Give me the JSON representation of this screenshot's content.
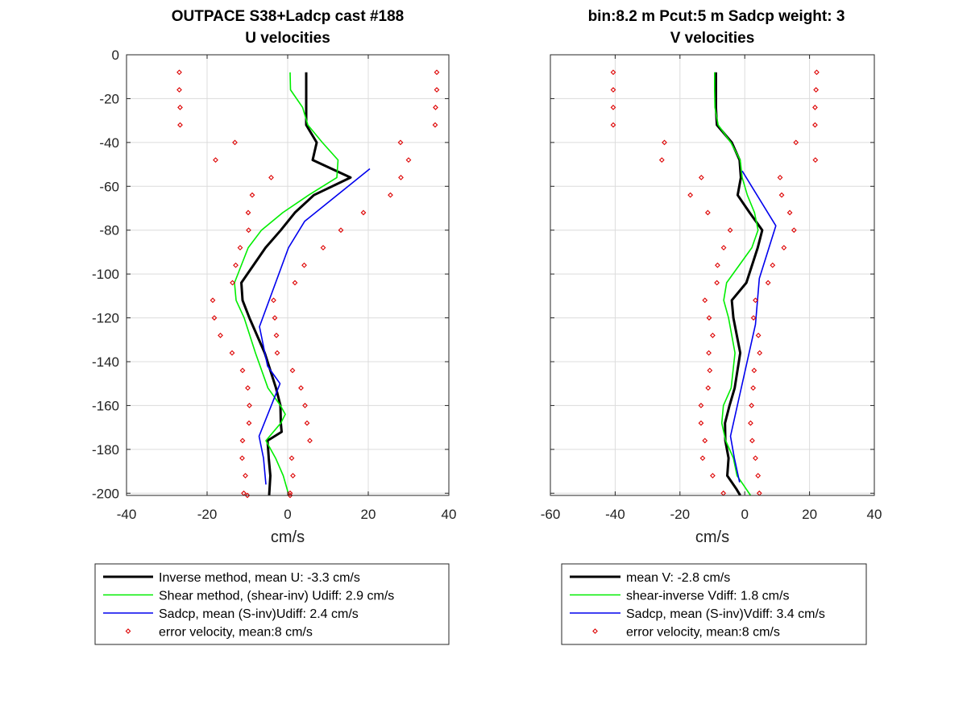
{
  "chart_data": [
    {
      "type": "line",
      "title": "OUTPACE S38+Ladcp cast #188",
      "subtitle": "U velocities",
      "xlabel": "cm/s",
      "ylabel": "",
      "xlim": [
        -40,
        40
      ],
      "ylim": [
        -201,
        0
      ],
      "xticks": [
        -40,
        -20,
        0,
        20,
        40
      ],
      "yticks": [
        0,
        -20,
        -40,
        -60,
        -80,
        -100,
        -120,
        -140,
        -160,
        -180,
        -200
      ],
      "grid": true,
      "legend_position": "below",
      "series": [
        {
          "name": "Inverse method, mean U:  -3.3 cm/s",
          "color": "#000000",
          "style": "line-thick",
          "x": [
            4.6,
            4.6,
            4.6,
            4.6,
            7.2,
            6.2,
            15.6,
            6.5,
            1.8,
            -1.7,
            -5.5,
            -11.5,
            -11.2,
            -9.5,
            -5.7,
            -2.9,
            -1.8,
            -1.7,
            -1.5,
            -5.0,
            -4.7,
            -4.3,
            -4.6
          ],
          "y": [
            -8,
            -16,
            -24,
            -32,
            -40,
            -48,
            -56,
            -64,
            -72,
            -80,
            -88,
            -104,
            -112,
            -120,
            -136,
            -152,
            -160,
            -168,
            -172,
            -176,
            -184,
            -192,
            -201
          ]
        },
        {
          "name": "Shear method, (shear-inv)  Udiff:  2.9 cm/s",
          "color": "#00ee00",
          "style": "line",
          "x": [
            0.6,
            0.7,
            3.7,
            5.0,
            8.6,
            12.5,
            12.2,
            5.2,
            -1.2,
            -6.5,
            -9.8,
            -13.2,
            -12.8,
            -10.8,
            -8.0,
            -4.9,
            -1.8,
            -0.6,
            -1.7,
            -5.4,
            -3.0,
            -1.1,
            0.3
          ],
          "y": [
            -8,
            -16,
            -24,
            -32,
            -40,
            -48,
            -56,
            -64,
            -72,
            -80,
            -88,
            -104,
            -112,
            -120,
            -136,
            -152,
            -160,
            -164,
            -168,
            -176,
            -184,
            -192,
            -201
          ]
        },
        {
          "name": "Sadcp, mean (S-inv)Udiff: 2.4 cm/s",
          "color": "#0000ee",
          "style": "line",
          "x": [
            20.4,
            4.2,
            0.2,
            -7.0,
            -5.0,
            -1.9,
            -7.1,
            -6.0,
            -5.4
          ],
          "y": [
            -52,
            -76,
            -88,
            -124,
            -142,
            -150,
            -174,
            -184,
            -196
          ]
        },
        {
          "name": "error velocity, mean:8 cm/s",
          "color": "#dd0000",
          "style": "markers-diamond",
          "x": [
            -26.9,
            -26.9,
            -26.7,
            -26.7,
            -13.1,
            -17.9,
            -4.1,
            -8.8,
            -9.8,
            -9.7,
            -11.8,
            -12.9,
            -13.7,
            -18.6,
            -18.2,
            -16.7,
            -13.8,
            -11.2,
            -9.9,
            -9.5,
            -9.6,
            -11.2,
            -11.3,
            -10.5,
            -10.9,
            -10.0,
            37.0,
            37.0,
            36.7,
            36.6,
            28.0,
            30.0,
            28.1,
            25.5,
            18.8,
            13.2,
            8.8,
            4.1,
            1.8,
            -3.5,
            -3.2,
            -2.8,
            -2.6,
            1.2,
            3.3,
            4.3,
            4.8,
            5.5,
            1.0,
            1.3,
            0.6,
            0.6
          ],
          "y": [
            -8,
            -16,
            -24,
            -32,
            -40,
            -48,
            -56,
            -64,
            -72,
            -80,
            -88,
            -96,
            -104,
            -112,
            -120,
            -128,
            -136,
            -144,
            -152,
            -160,
            -168,
            -176,
            -184,
            -192,
            -200,
            -201,
            -8,
            -16,
            -24,
            -32,
            -40,
            -48,
            -56,
            -64,
            -72,
            -80,
            -88,
            -96,
            -104,
            -112,
            -120,
            -128,
            -136,
            -144,
            -152,
            -160,
            -168,
            -176,
            -184,
            -192,
            -200,
            -201
          ]
        }
      ]
    },
    {
      "type": "line",
      "title": "bin:8.2 m  Pcut:5 m  Sadcp weight: 3",
      "subtitle": "V velocities",
      "xlabel": "cm/s",
      "ylabel": "",
      "xlim": [
        -60,
        40
      ],
      "ylim": [
        -201,
        0
      ],
      "xticks": [
        -60,
        -40,
        -20,
        0,
        20,
        40
      ],
      "yticks": [
        0,
        -20,
        -40,
        -60,
        -80,
        -100,
        -120,
        -140,
        -160,
        -180,
        -200
      ],
      "grid": true,
      "legend_position": "below",
      "series": [
        {
          "name": "mean V:  -2.8 cm/s",
          "color": "#000000",
          "style": "line-thick",
          "x": [
            -8.9,
            -8.9,
            -8.9,
            -8.6,
            -4.0,
            -1.6,
            -1.2,
            -2.2,
            1.5,
            5.4,
            4.0,
            0.5,
            -4.0,
            -3.5,
            -1.4,
            -3.1,
            -4.7,
            -6.1,
            -6.0,
            -5.0,
            -5.4,
            -2.6,
            -1.4
          ],
          "y": [
            -8,
            -16,
            -24,
            -32,
            -40,
            -48,
            -56,
            -64,
            -72,
            -80,
            -88,
            -104,
            -112,
            -120,
            -136,
            -152,
            -160,
            -168,
            -176,
            -184,
            -192,
            -198,
            -201
          ]
        },
        {
          "name": "shear-inverse Vdiff:  1.8 cm/s",
          "color": "#00ee00",
          "style": "line",
          "x": [
            -9.3,
            -9.3,
            -9.2,
            -8.2,
            -4.3,
            -1.4,
            -0.8,
            0.8,
            3.0,
            4.1,
            2.2,
            -5.6,
            -6.5,
            -5.0,
            -3.0,
            -4.2,
            -6.6,
            -7.1,
            -5.9,
            -3.5,
            -2.4,
            -0.5,
            1.8
          ],
          "y": [
            -8,
            -16,
            -24,
            -32,
            -40,
            -48,
            -56,
            -64,
            -72,
            -80,
            -88,
            -104,
            -112,
            -120,
            -136,
            -152,
            -160,
            -168,
            -176,
            -184,
            -192,
            -196,
            -201
          ]
        },
        {
          "name": "Sadcp, mean (S-inv)Vdiff: 3.4 cm/s",
          "color": "#0000ee",
          "style": "line",
          "x": [
            -0.8,
            9.6,
            4.5,
            3.3,
            -4.4,
            -3.2,
            -1.6
          ],
          "y": [
            -53,
            -78,
            -102,
            -123,
            -174,
            -184,
            -195
          ]
        },
        {
          "name": "error velocity, mean:8 cm/s",
          "color": "#dd0000",
          "style": "markers-diamond",
          "x": [
            -40.6,
            -40.6,
            -40.6,
            -40.6,
            -24.8,
            -25.6,
            -13.4,
            -16.8,
            -11.4,
            -4.5,
            -6.5,
            -8.4,
            -8.6,
            -12.3,
            -11.0,
            -9.9,
            -11.1,
            -10.8,
            -11.3,
            -13.5,
            -13.5,
            -12.3,
            -13.0,
            -9.9,
            -6.6,
            22.2,
            22.0,
            21.7,
            21.7,
            15.8,
            21.8,
            10.9,
            11.4,
            13.9,
            15.2,
            12.1,
            8.6,
            7.2,
            3.3,
            2.7,
            4.2,
            4.6,
            2.9,
            2.6,
            2.1,
            1.8,
            2.3,
            3.3,
            4.1,
            4.5
          ],
          "y": [
            -8,
            -16,
            -24,
            -32,
            -40,
            -48,
            -56,
            -64,
            -72,
            -80,
            -88,
            -96,
            -104,
            -112,
            -120,
            -128,
            -136,
            -144,
            -152,
            -160,
            -168,
            -176,
            -184,
            -192,
            -200,
            -8,
            -16,
            -24,
            -32,
            -40,
            -48,
            -56,
            -64,
            -72,
            -80,
            -88,
            -96,
            -104,
            -112,
            -120,
            -128,
            -136,
            -144,
            -152,
            -160,
            -168,
            -176,
            -184,
            -192,
            -200
          ]
        }
      ]
    }
  ]
}
